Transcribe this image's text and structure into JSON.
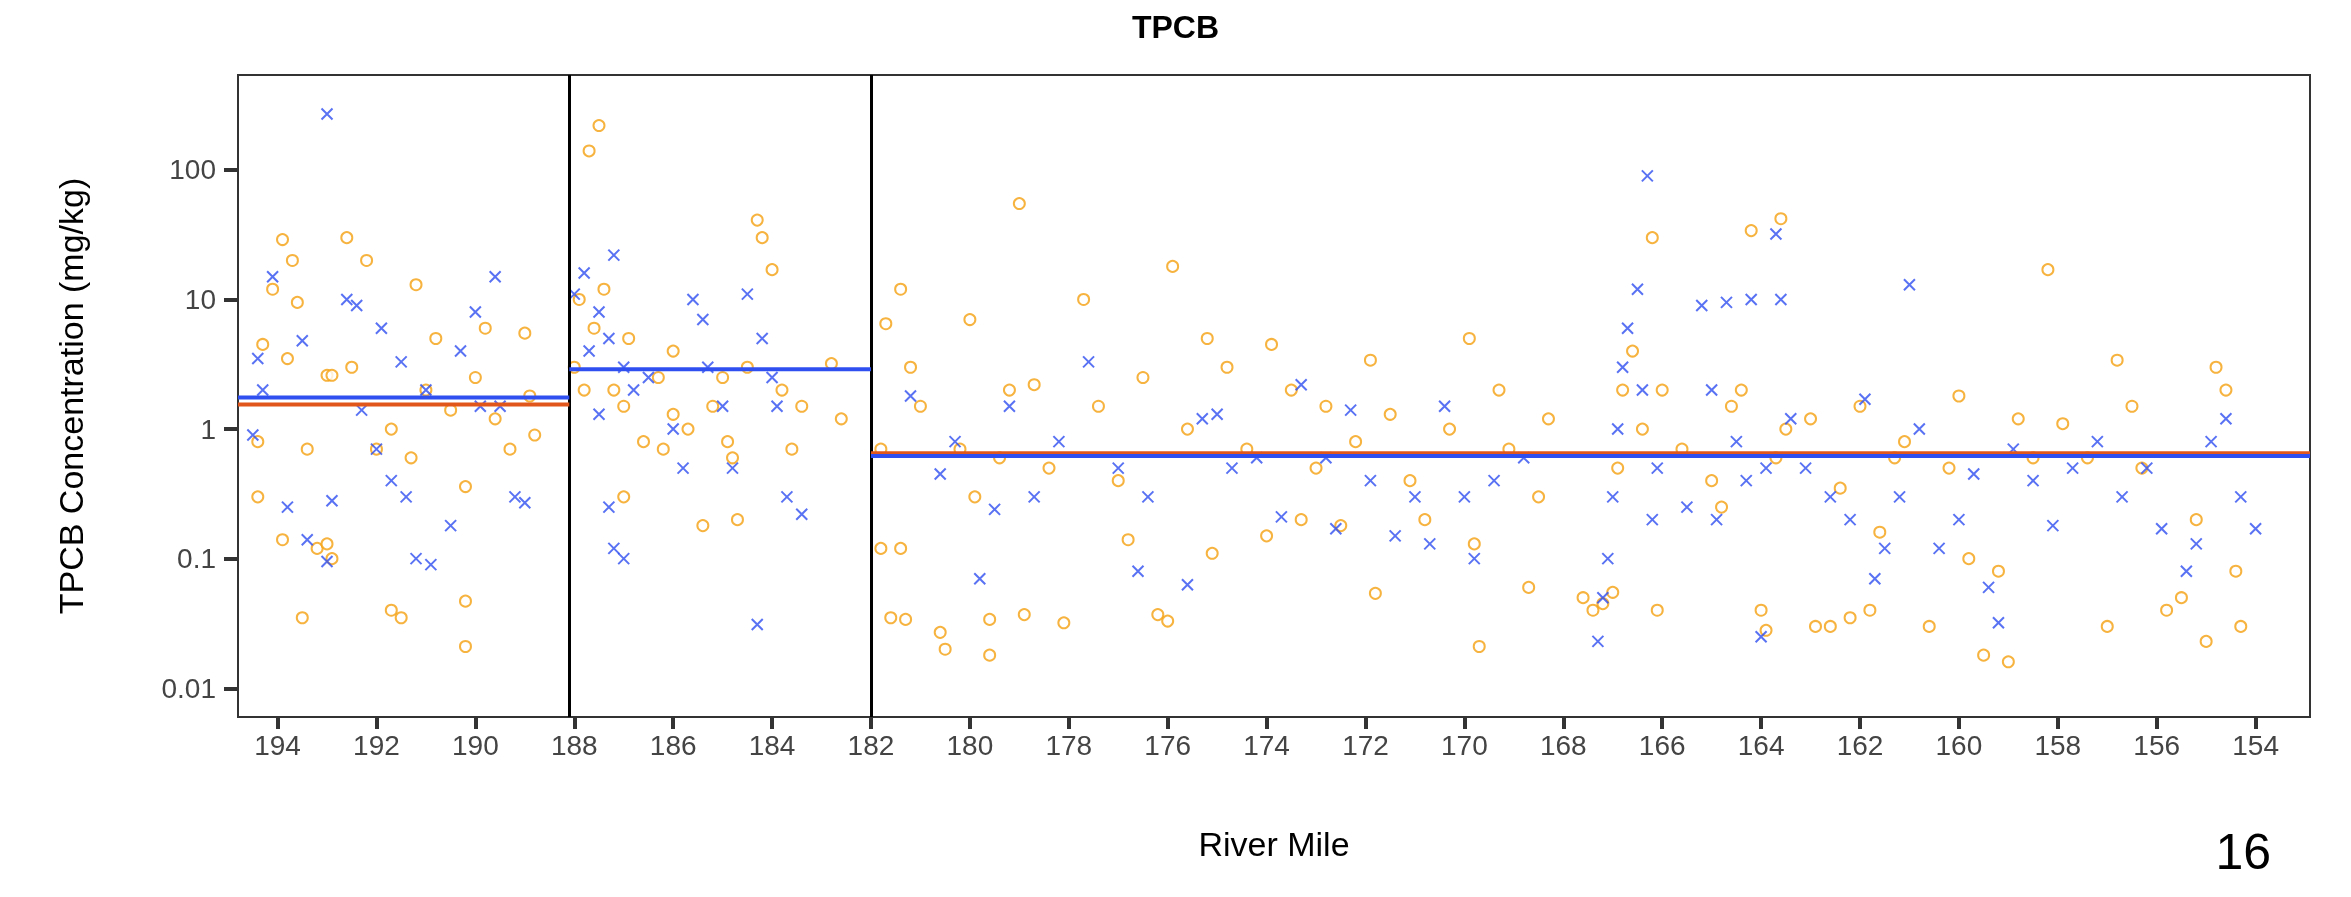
{
  "chart_data": {
    "type": "scatter",
    "title": "TPCB",
    "xlabel": "River Mile",
    "ylabel": "TPCB Concentration (mg/kg)",
    "annotations": [
      "16"
    ],
    "log": "y",
    "grid": false,
    "legend": false,
    "xlim": [
      194.8,
      152.9
    ],
    "xticks": [
      194,
      192,
      190,
      188,
      186,
      184,
      182,
      180,
      178,
      176,
      174,
      172,
      170,
      168,
      166,
      164,
      162,
      160,
      158,
      156,
      154
    ],
    "ylim": [
      0.006,
      540
    ],
    "yticks": [
      0.01,
      0.1,
      1,
      10,
      100
    ],
    "ref_lines": [
      {
        "axis": "x",
        "value": 188.1,
        "label": null,
        "color": "#000000"
      },
      {
        "axis": "x",
        "value": 182.0,
        "label": null,
        "color": "#000000"
      }
    ],
    "series": [
      {
        "type": "scatter",
        "marker": "circle",
        "color": "#f5a00f",
        "x": [
          194.3,
          194.1,
          193.9,
          193.7,
          193.6,
          193.8,
          194.4,
          194.4,
          193.9,
          193.5,
          193.4,
          193.2,
          193.0,
          192.9,
          192.6,
          192.2,
          192.5,
          192.0,
          191.7,
          191.5,
          191.3,
          191.2,
          191.0,
          190.8,
          190.5,
          190.2,
          190.2,
          190.2,
          189.8,
          189.6,
          189.3,
          189.0,
          188.9,
          188.8,
          193.0,
          192.9,
          191.7,
          190.0,
          187.5,
          187.7,
          187.9,
          187.4,
          187.6,
          188.0,
          187.2,
          187.0,
          186.9,
          186.6,
          186.3,
          186.0,
          185.7,
          185.4,
          185.0,
          184.8,
          184.5,
          184.3,
          184.2,
          184.0,
          183.8,
          183.6,
          183.4,
          182.8,
          182.6,
          184.7,
          186.2,
          187.0,
          186.0,
          187.8,
          185.2,
          184.9,
          181.7,
          181.4,
          181.2,
          181.0,
          181.8,
          181.8,
          181.4,
          181.6,
          181.3,
          180.5,
          180.6,
          180.2,
          180.0,
          179.9,
          179.6,
          179.6,
          179.4,
          179.2,
          179.0,
          178.9,
          178.7,
          178.4,
          178.1,
          177.7,
          177.4,
          177.0,
          176.8,
          176.5,
          176.2,
          176.0,
          175.9,
          175.6,
          175.2,
          175.1,
          174.8,
          174.4,
          174.0,
          173.9,
          173.5,
          173.3,
          173.0,
          172.8,
          172.5,
          172.2,
          171.9,
          171.8,
          171.5,
          171.1,
          170.8,
          170.3,
          169.9,
          169.8,
          169.7,
          169.3,
          169.1,
          168.7,
          168.5,
          168.3,
          167.6,
          167.4,
          167.2,
          167.0,
          166.9,
          166.8,
          166.6,
          166.4,
          166.2,
          166.1,
          166.0,
          165.6,
          165.0,
          164.8,
          164.6,
          164.4,
          164.2,
          164.0,
          163.9,
          163.7,
          163.6,
          163.5,
          163.0,
          162.6,
          162.4,
          162.2,
          162.0,
          161.8,
          161.6,
          161.3,
          161.1,
          160.6,
          160.2,
          160.0,
          159.8,
          159.5,
          159.2,
          159.0,
          158.8,
          158.5,
          158.2,
          157.9,
          157.4,
          157.0,
          156.8,
          156.5,
          156.3,
          155.8,
          155.5,
          155.2,
          155.0,
          154.8,
          154.6,
          154.4,
          154.3,
          162.9
        ],
        "values": [
          4.5,
          12,
          29,
          20,
          9.5,
          3.5,
          0.8,
          0.3,
          0.14,
          0.035,
          0.7,
          0.12,
          0.13,
          0.1,
          30,
          20,
          3,
          0.7,
          0.04,
          0.035,
          0.6,
          13,
          2,
          5,
          1.4,
          0.36,
          0.047,
          0.021,
          6,
          1.2,
          0.7,
          5.5,
          1.8,
          0.9,
          2.6,
          2.6,
          1,
          2.5,
          220,
          140,
          10,
          12,
          6,
          3,
          2,
          1.5,
          5,
          0.8,
          2.5,
          4,
          1,
          0.18,
          2.5,
          0.6,
          3,
          41,
          30,
          17,
          2,
          0.7,
          1.5,
          3.2,
          1.2,
          0.2,
          0.7,
          0.3,
          1.3,
          2,
          1.5,
          0.8,
          6.5,
          12,
          3,
          1.5,
          0.7,
          0.12,
          0.12,
          0.035,
          0.034,
          0.02,
          0.027,
          0.7,
          7,
          0.3,
          0.034,
          0.018,
          0.6,
          2,
          55,
          0.037,
          2.2,
          0.5,
          0.032,
          10,
          1.5,
          0.4,
          0.14,
          2.5,
          0.037,
          0.033,
          18,
          1,
          5,
          0.11,
          3,
          0.7,
          0.15,
          4.5,
          2,
          0.2,
          0.5,
          1.5,
          0.18,
          0.8,
          3.4,
          0.054,
          1.3,
          0.4,
          0.2,
          1,
          5,
          0.13,
          0.021,
          2,
          0.7,
          0.06,
          0.3,
          1.2,
          0.05,
          0.04,
          0.045,
          0.055,
          0.5,
          2,
          4,
          1,
          30,
          0.04,
          2,
          0.7,
          0.4,
          0.25,
          1.5,
          2,
          34,
          0.04,
          0.028,
          0.6,
          42,
          1,
          1.2,
          0.03,
          0.35,
          0.035,
          1.5,
          0.04,
          0.16,
          0.6,
          0.8,
          0.03,
          0.5,
          1.8,
          0.1,
          0.018,
          0.08,
          0.016,
          1.2,
          0.6,
          17,
          1.1,
          0.6,
          0.03,
          3.4,
          1.5,
          0.5,
          0.04,
          0.05,
          0.2,
          0.023,
          3,
          2,
          0.08,
          0.03,
          0.03
        ]
      },
      {
        "type": "scatter",
        "marker": "cross",
        "color": "#2f4ff0",
        "x": [
          193.0,
          194.1,
          194.4,
          194.3,
          194.5,
          193.8,
          193.4,
          193.0,
          192.9,
          192.6,
          192.4,
          191.9,
          191.7,
          191.4,
          191.2,
          190.9,
          190.5,
          190.0,
          189.9,
          189.6,
          189.2,
          189.0,
          191.0,
          191.5,
          192.3,
          190.3,
          189.5,
          193.5,
          192.0,
          187.2,
          187.8,
          188.0,
          187.5,
          187.3,
          187.0,
          186.8,
          187.5,
          187.3,
          187.2,
          187.0,
          185.6,
          185.4,
          185.3,
          185.0,
          184.8,
          184.5,
          184.2,
          183.9,
          183.7,
          183.4,
          184.3,
          185.8,
          186.5,
          187.7,
          186.0,
          184.0,
          181.2,
          180.6,
          180.3,
          179.8,
          179.5,
          179.2,
          178.7,
          178.2,
          177.6,
          177.0,
          176.6,
          176.4,
          175.6,
          175.3,
          175.0,
          174.7,
          174.2,
          173.7,
          173.3,
          172.8,
          172.6,
          172.3,
          171.9,
          171.4,
          171.0,
          170.7,
          170.4,
          170.0,
          169.8,
          169.4,
          168.8,
          167.3,
          167.2,
          167.1,
          167.0,
          166.9,
          166.8,
          166.7,
          166.5,
          166.4,
          166.3,
          166.2,
          166.1,
          165.2,
          165.0,
          164.9,
          164.7,
          164.5,
          164.3,
          164.2,
          164.0,
          163.9,
          163.7,
          163.6,
          163.4,
          162.6,
          162.2,
          161.9,
          161.7,
          161.5,
          161.2,
          161.0,
          160.8,
          160.4,
          160.0,
          159.7,
          159.4,
          159.2,
          158.9,
          158.5,
          158.1,
          157.7,
          157.2,
          156.7,
          156.2,
          155.9,
          155.4,
          155.2,
          154.9,
          154.6,
          154.3,
          154.0,
          163.1,
          165.5
        ],
        "values": [
          270,
          15,
          3.5,
          2,
          0.9,
          0.25,
          0.14,
          0.095,
          0.28,
          10,
          9,
          6,
          0.4,
          0.3,
          0.1,
          0.09,
          0.18,
          8,
          1.5,
          15,
          0.3,
          0.27,
          2,
          3.3,
          1.4,
          4,
          1.5,
          4.8,
          0.7,
          22,
          16,
          11,
          8,
          5,
          3,
          2,
          1.3,
          0.25,
          0.12,
          0.1,
          10,
          7,
          3,
          1.5,
          0.5,
          11,
          5,
          1.5,
          0.3,
          0.22,
          0.031,
          0.5,
          2.5,
          4,
          1,
          2.5,
          1.8,
          0.45,
          0.8,
          0.07,
          0.24,
          1.5,
          0.3,
          0.8,
          3.3,
          0.5,
          0.08,
          0.3,
          0.063,
          1.2,
          1.3,
          0.5,
          0.6,
          0.21,
          2.2,
          0.6,
          0.17,
          1.4,
          0.4,
          0.15,
          0.3,
          0.13,
          1.5,
          0.3,
          0.1,
          0.4,
          0.6,
          0.023,
          0.05,
          0.1,
          0.3,
          1,
          3,
          6,
          12,
          2,
          90,
          0.2,
          0.5,
          9,
          2,
          0.2,
          9.5,
          0.8,
          0.4,
          10,
          0.025,
          0.5,
          32,
          10,
          1.2,
          0.3,
          0.2,
          1.7,
          0.07,
          0.12,
          0.3,
          13,
          1,
          0.12,
          0.2,
          0.45,
          0.06,
          0.032,
          0.7,
          0.4,
          0.18,
          0.5,
          0.8,
          0.3,
          0.5,
          0.17,
          0.08,
          0.13,
          0.8,
          1.2,
          0.3,
          0.17,
          0.5,
          0.25
        ]
      },
      {
        "type": "line",
        "color": "#e0561b",
        "x": [
          194.8,
          188.1
        ],
        "values": [
          1.55,
          1.55
        ]
      },
      {
        "type": "line",
        "color": "#2f4ff0",
        "x": [
          194.8,
          188.1
        ],
        "values": [
          1.75,
          1.75
        ]
      },
      {
        "type": "line",
        "color": "#2f4ff0",
        "x": [
          188.1,
          182.0
        ],
        "values": [
          2.9,
          2.9
        ]
      },
      {
        "type": "line",
        "color": "#e0561b",
        "x": [
          182.0,
          152.9
        ],
        "values": [
          0.65,
          0.65
        ]
      },
      {
        "type": "line",
        "color": "#2f4ff0",
        "x": [
          182.0,
          152.9
        ],
        "values": [
          0.62,
          0.62
        ]
      }
    ]
  }
}
